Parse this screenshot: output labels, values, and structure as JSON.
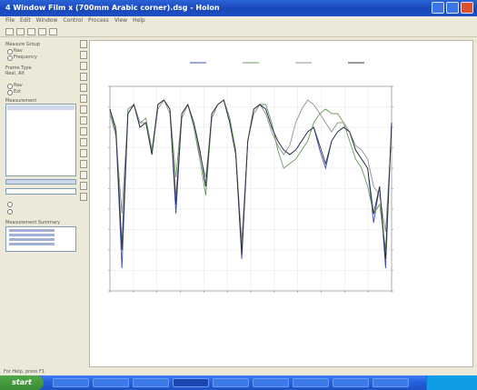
{
  "window": {
    "title": "4 Window Film x (700mm Arabic corner).dsg - Holon"
  },
  "menu": [
    "File",
    "Edit",
    "Window",
    "Control",
    "Process",
    "View",
    "Help"
  ],
  "left_panel": {
    "group1_label": "Measure Group",
    "radio1": "Nav",
    "radio2": "Frequency",
    "group2_label": "Frame Type",
    "group2_value": "Real, Alt",
    "radio3": "Nav",
    "radio4": "Ext",
    "list_label": "Measurement",
    "group3_label": "Measurement Summary"
  },
  "status": {
    "text": "For Help, press F1"
  },
  "taskbar": {
    "start_label": "start"
  },
  "colors": {
    "series_blue": "#3a50b8",
    "series_green": "#6a9a5a",
    "series_gray": "#909090",
    "series_dark": "#303040"
  },
  "chart_data": {
    "type": "line",
    "legend": [],
    "series": [
      {
        "color": "#3a50b8",
        "y": [
          -5,
          -10,
          -40,
          -6,
          -4,
          -9,
          -8,
          -15,
          -4,
          -3,
          -5,
          -28,
          -6,
          -4,
          -8,
          -14,
          -22,
          -6,
          -4,
          -3,
          -8,
          -15,
          -38,
          -12,
          -5,
          -4,
          -5,
          -9,
          -12,
          -14,
          -15,
          -14,
          -12,
          -10,
          -9,
          -14,
          -18,
          -12,
          -10,
          -9,
          -10,
          -14,
          -16,
          -18,
          -30,
          -22,
          -40,
          -8
        ]
      },
      {
        "color": "#6a9a5a",
        "y": [
          -5,
          -9,
          -35,
          -5,
          -4,
          -8,
          -7,
          -14,
          -4,
          -3,
          -5,
          -20,
          -6,
          -4,
          -9,
          -16,
          -24,
          -7,
          -4,
          -3,
          -7,
          -14,
          -36,
          -12,
          -6,
          -4,
          -4,
          -8,
          -14,
          -18,
          -17,
          -16,
          -14,
          -12,
          -8,
          -6,
          -5,
          -6,
          -6,
          -8,
          -12,
          -16,
          -18,
          -22,
          -28,
          -26,
          -36,
          -9
        ]
      },
      {
        "color": "#909090",
        "y": [
          -6,
          -11,
          -28,
          -6,
          -4,
          -8,
          -8,
          -15,
          -5,
          -3,
          -6,
          -24,
          -7,
          -4,
          -8,
          -15,
          -20,
          -7,
          -4,
          -3,
          -8,
          -15,
          -34,
          -12,
          -6,
          -4,
          -6,
          -10,
          -13,
          -15,
          -13,
          -8,
          -5,
          -3,
          -4,
          -6,
          -8,
          -10,
          -8,
          -8,
          -10,
          -13,
          -14,
          -16,
          -22,
          -24,
          -32,
          -10
        ]
      },
      {
        "color": "#303040",
        "y": [
          -5,
          -10,
          -36,
          -6,
          -4,
          -9,
          -8,
          -15,
          -4,
          -3,
          -5,
          -26,
          -6,
          -4,
          -8,
          -14,
          -22,
          -6,
          -4,
          -3,
          -8,
          -15,
          -37,
          -12,
          -5,
          -4,
          -5,
          -9,
          -12,
          -14,
          -15,
          -14,
          -12,
          -10,
          -9,
          -13,
          -17,
          -12,
          -10,
          -9,
          -10,
          -14,
          -16,
          -18,
          -28,
          -22,
          -38,
          -8
        ]
      }
    ]
  }
}
